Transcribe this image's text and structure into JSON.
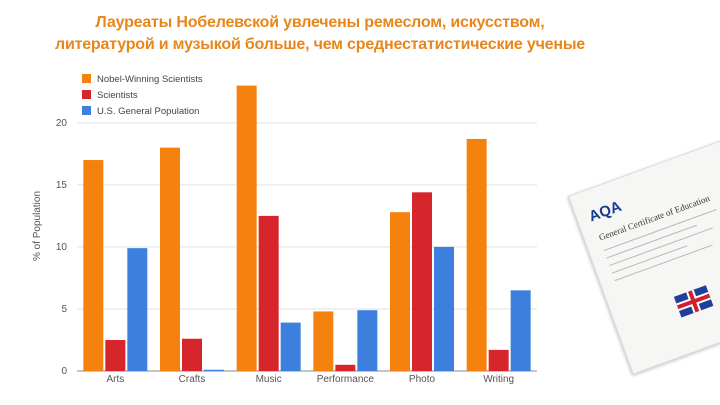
{
  "slide": {
    "title_line1": "Лауреаты Нобелевской увлечены ремеслом, искусством,",
    "title_line2": "литературой и музыкой больше, чем среднестатистические ученые"
  },
  "certificate": {
    "logo_text": "AQA",
    "title_text": "General Certificate of Education"
  },
  "colors": {
    "title": "#e8861a",
    "nobel": "#f5820f",
    "scientists": "#d7262b",
    "population": "#3c7fdc"
  },
  "chart_data": {
    "type": "bar",
    "title": "",
    "xlabel": "",
    "ylabel": "% of Population",
    "ylim": [
      0,
      22
    ],
    "yticks": [
      0,
      5,
      10,
      15,
      20
    ],
    "grid": true,
    "legend_position": "top-left",
    "categories": [
      "Arts",
      "Crafts",
      "Music",
      "Performance",
      "Photo",
      "Writing"
    ],
    "series": [
      {
        "name": "Nobel-Winning Scientists",
        "color": "#f5820f",
        "values": [
          17.0,
          18.0,
          23.0,
          4.8,
          12.8,
          18.7
        ]
      },
      {
        "name": "Scientists",
        "color": "#d7262b",
        "values": [
          2.5,
          2.6,
          12.5,
          0.5,
          14.4,
          1.7
        ]
      },
      {
        "name": "U.S. General Population",
        "color": "#3c7fdc",
        "values": [
          9.9,
          0.1,
          3.9,
          4.9,
          10.0,
          6.5
        ]
      }
    ]
  }
}
